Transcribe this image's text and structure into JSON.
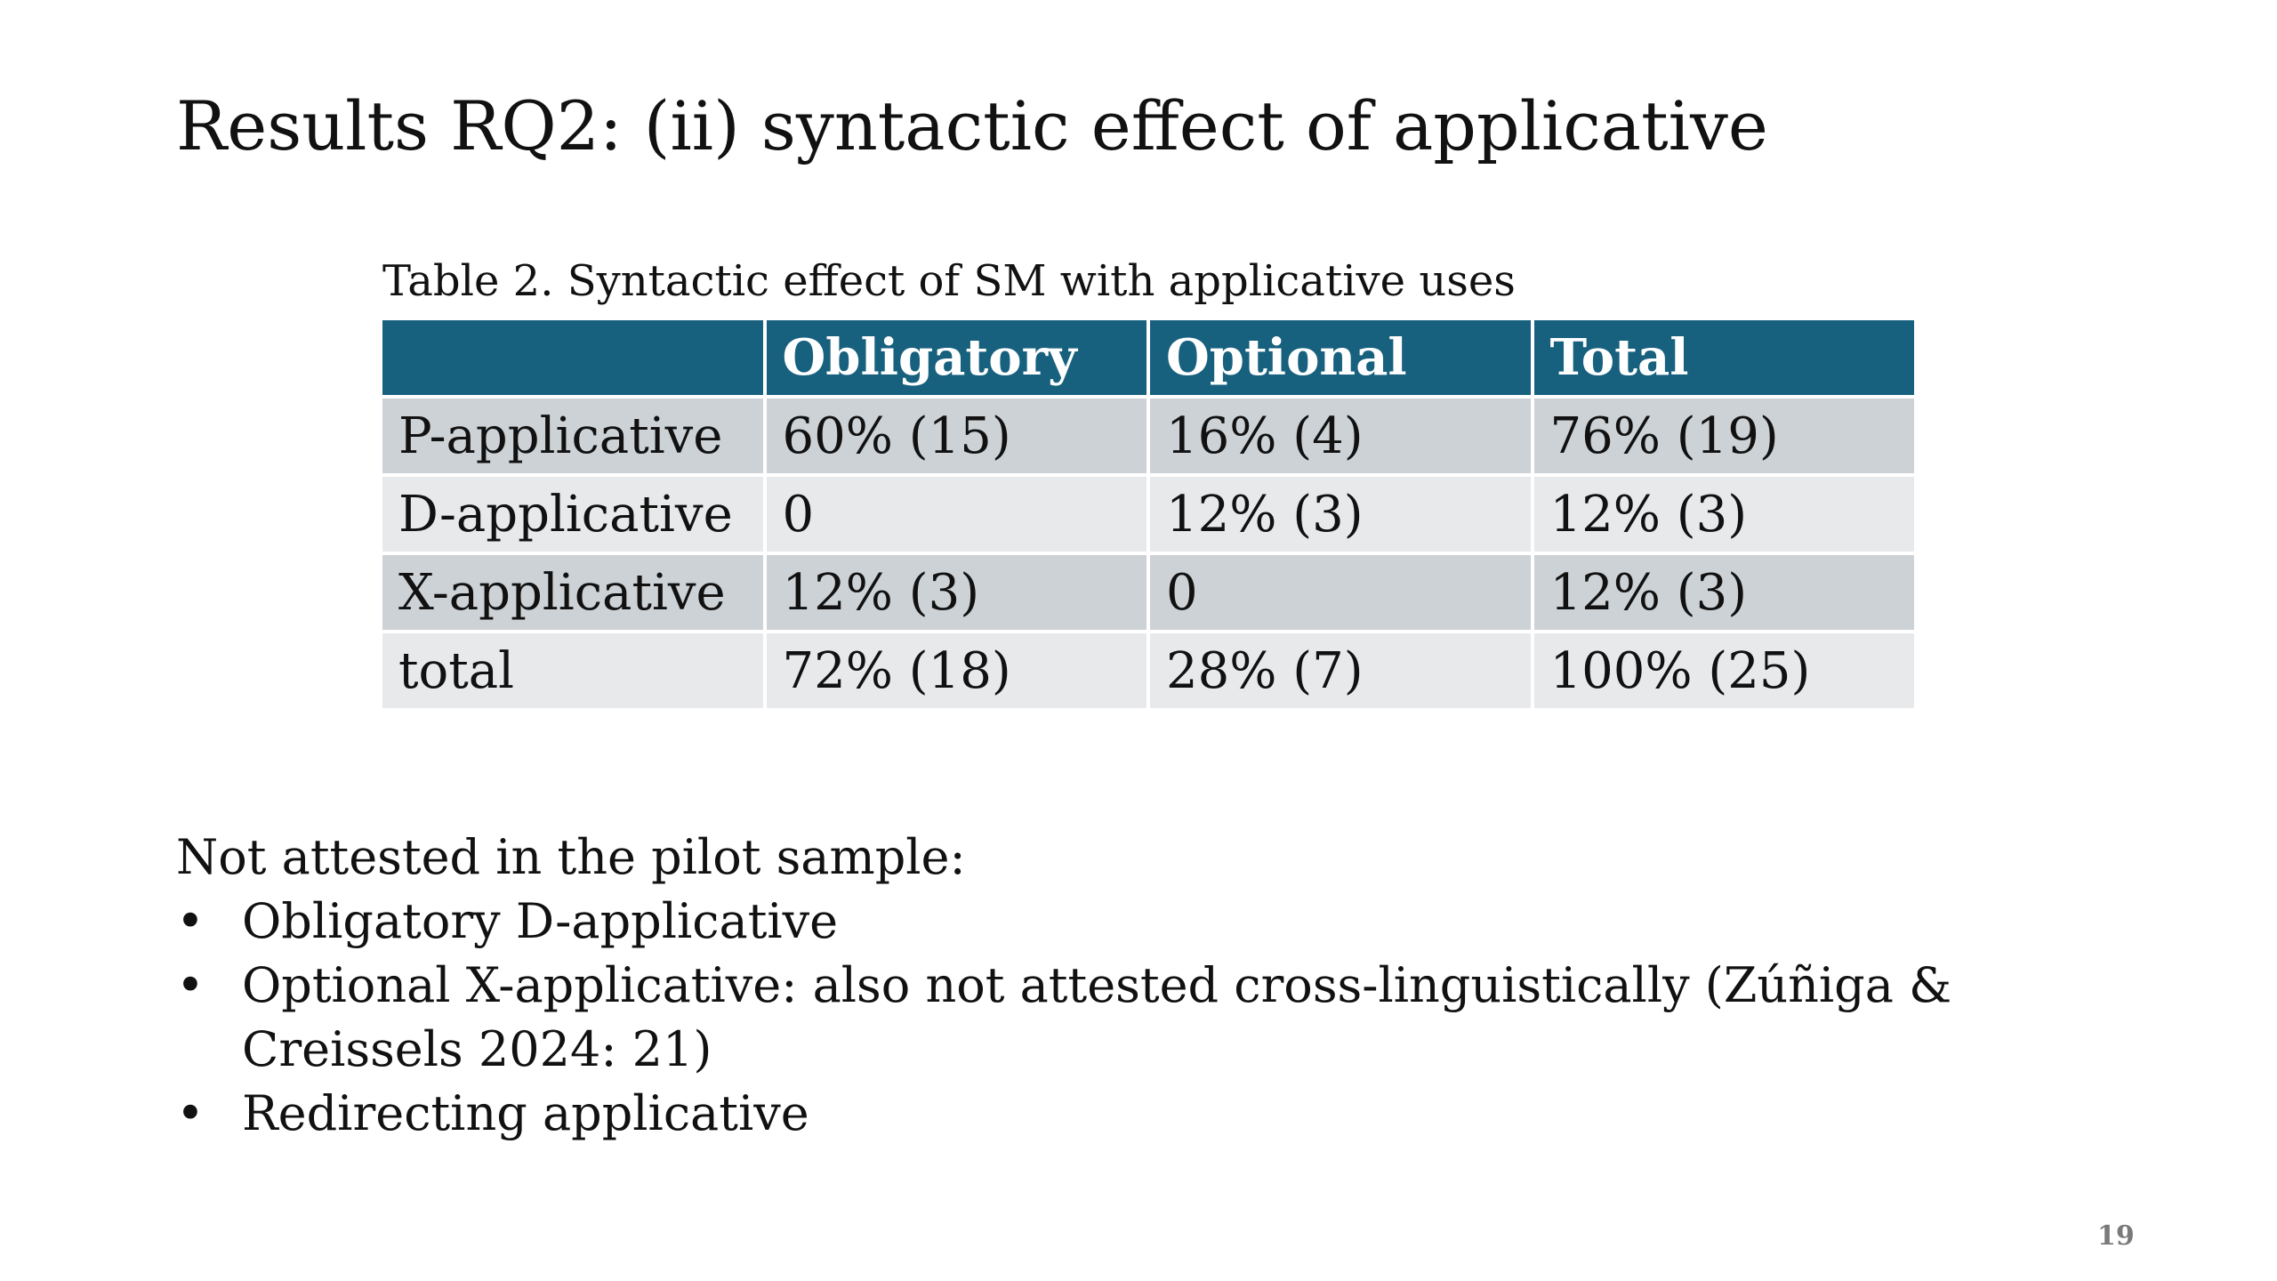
{
  "slide": {
    "title": "Results RQ2: (ii) syntactic effect of applicative",
    "page_number": "19"
  },
  "table": {
    "caption": "Table 2. Syntactic effect of SM with applicative uses",
    "header": [
      "",
      "Obligatory",
      "Optional",
      "Total"
    ],
    "rows": [
      [
        "P-applicative",
        "60% (15)",
        "16% (4)",
        "76% (19)"
      ],
      [
        "D-applicative",
        "0",
        "12% (3)",
        "12% (3)"
      ],
      [
        "X-applicative",
        "12% (3)",
        "0",
        "12% (3)"
      ],
      [
        "total",
        "72% (18)",
        "28% (7)",
        "100% (25)"
      ]
    ],
    "colors": {
      "header_bg": "#17617f",
      "row_dark": "#cdd2d6",
      "row_light": "#e7e9eb"
    }
  },
  "notes": {
    "intro": "Not attested in the pilot sample:",
    "bullet_symbol": "•",
    "items": [
      "Obligatory D-applicative",
      "Optional X-applicative: also not attested cross-linguistically (Zúñiga & Creissels 2024: 21)",
      "Redirecting applicative"
    ]
  }
}
